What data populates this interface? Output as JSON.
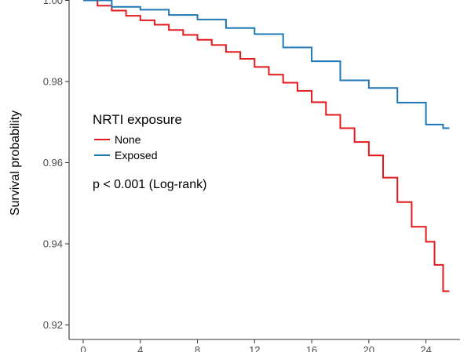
{
  "chart_data": {
    "type": "line",
    "title": "",
    "xlabel": "",
    "ylabel": "Survival probability",
    "xlim": [
      0,
      26
    ],
    "ylim": [
      0.92,
      1.0
    ],
    "x_ticks": [
      0,
      4,
      8,
      12,
      16,
      20,
      24
    ],
    "y_ticks": [
      0.92,
      0.94,
      0.96,
      0.98,
      1.0
    ],
    "y_tick_labels": [
      "0.92",
      "0.94",
      "0.96",
      "0.98",
      "1.00"
    ],
    "grid": false,
    "step": true,
    "legend": {
      "title": "NRTI exposure",
      "placement": "left"
    },
    "annotation": "p < 0.001 (Log-rank)",
    "series": [
      {
        "name": "None",
        "color": "#e31a1c",
        "points": [
          [
            0,
            1.0
          ],
          [
            1,
            0.9987
          ],
          [
            2,
            0.9975
          ],
          [
            3,
            0.9962
          ],
          [
            4,
            0.9951
          ],
          [
            5,
            0.994
          ],
          [
            6,
            0.9927
          ],
          [
            7,
            0.9915
          ],
          [
            8,
            0.9903
          ],
          [
            9,
            0.989
          ],
          [
            10,
            0.9873
          ],
          [
            11,
            0.9856
          ],
          [
            12,
            0.9836
          ],
          [
            13,
            0.9817
          ],
          [
            14,
            0.9797
          ],
          [
            15,
            0.9777
          ],
          [
            16,
            0.9749
          ],
          [
            17,
            0.9718
          ],
          [
            18,
            0.9685
          ],
          [
            19,
            0.9651
          ],
          [
            20,
            0.9618
          ],
          [
            21,
            0.9563
          ],
          [
            22,
            0.9503
          ],
          [
            23,
            0.9442
          ],
          [
            24,
            0.9405
          ],
          [
            24.6,
            0.9348
          ],
          [
            25.2,
            0.9283
          ]
        ]
      },
      {
        "name": "Exposed",
        "color": "#1f78b4",
        "points": [
          [
            0,
            1.0
          ],
          [
            2,
            0.9984
          ],
          [
            4,
            0.9977
          ],
          [
            6,
            0.9964
          ],
          [
            8,
            0.9953
          ],
          [
            10,
            0.9932
          ],
          [
            12,
            0.9917
          ],
          [
            14,
            0.9884
          ],
          [
            16,
            0.985
          ],
          [
            18,
            0.9803
          ],
          [
            20,
            0.9784
          ],
          [
            22,
            0.9748
          ],
          [
            24,
            0.9694
          ],
          [
            25.2,
            0.9685
          ]
        ]
      }
    ]
  }
}
